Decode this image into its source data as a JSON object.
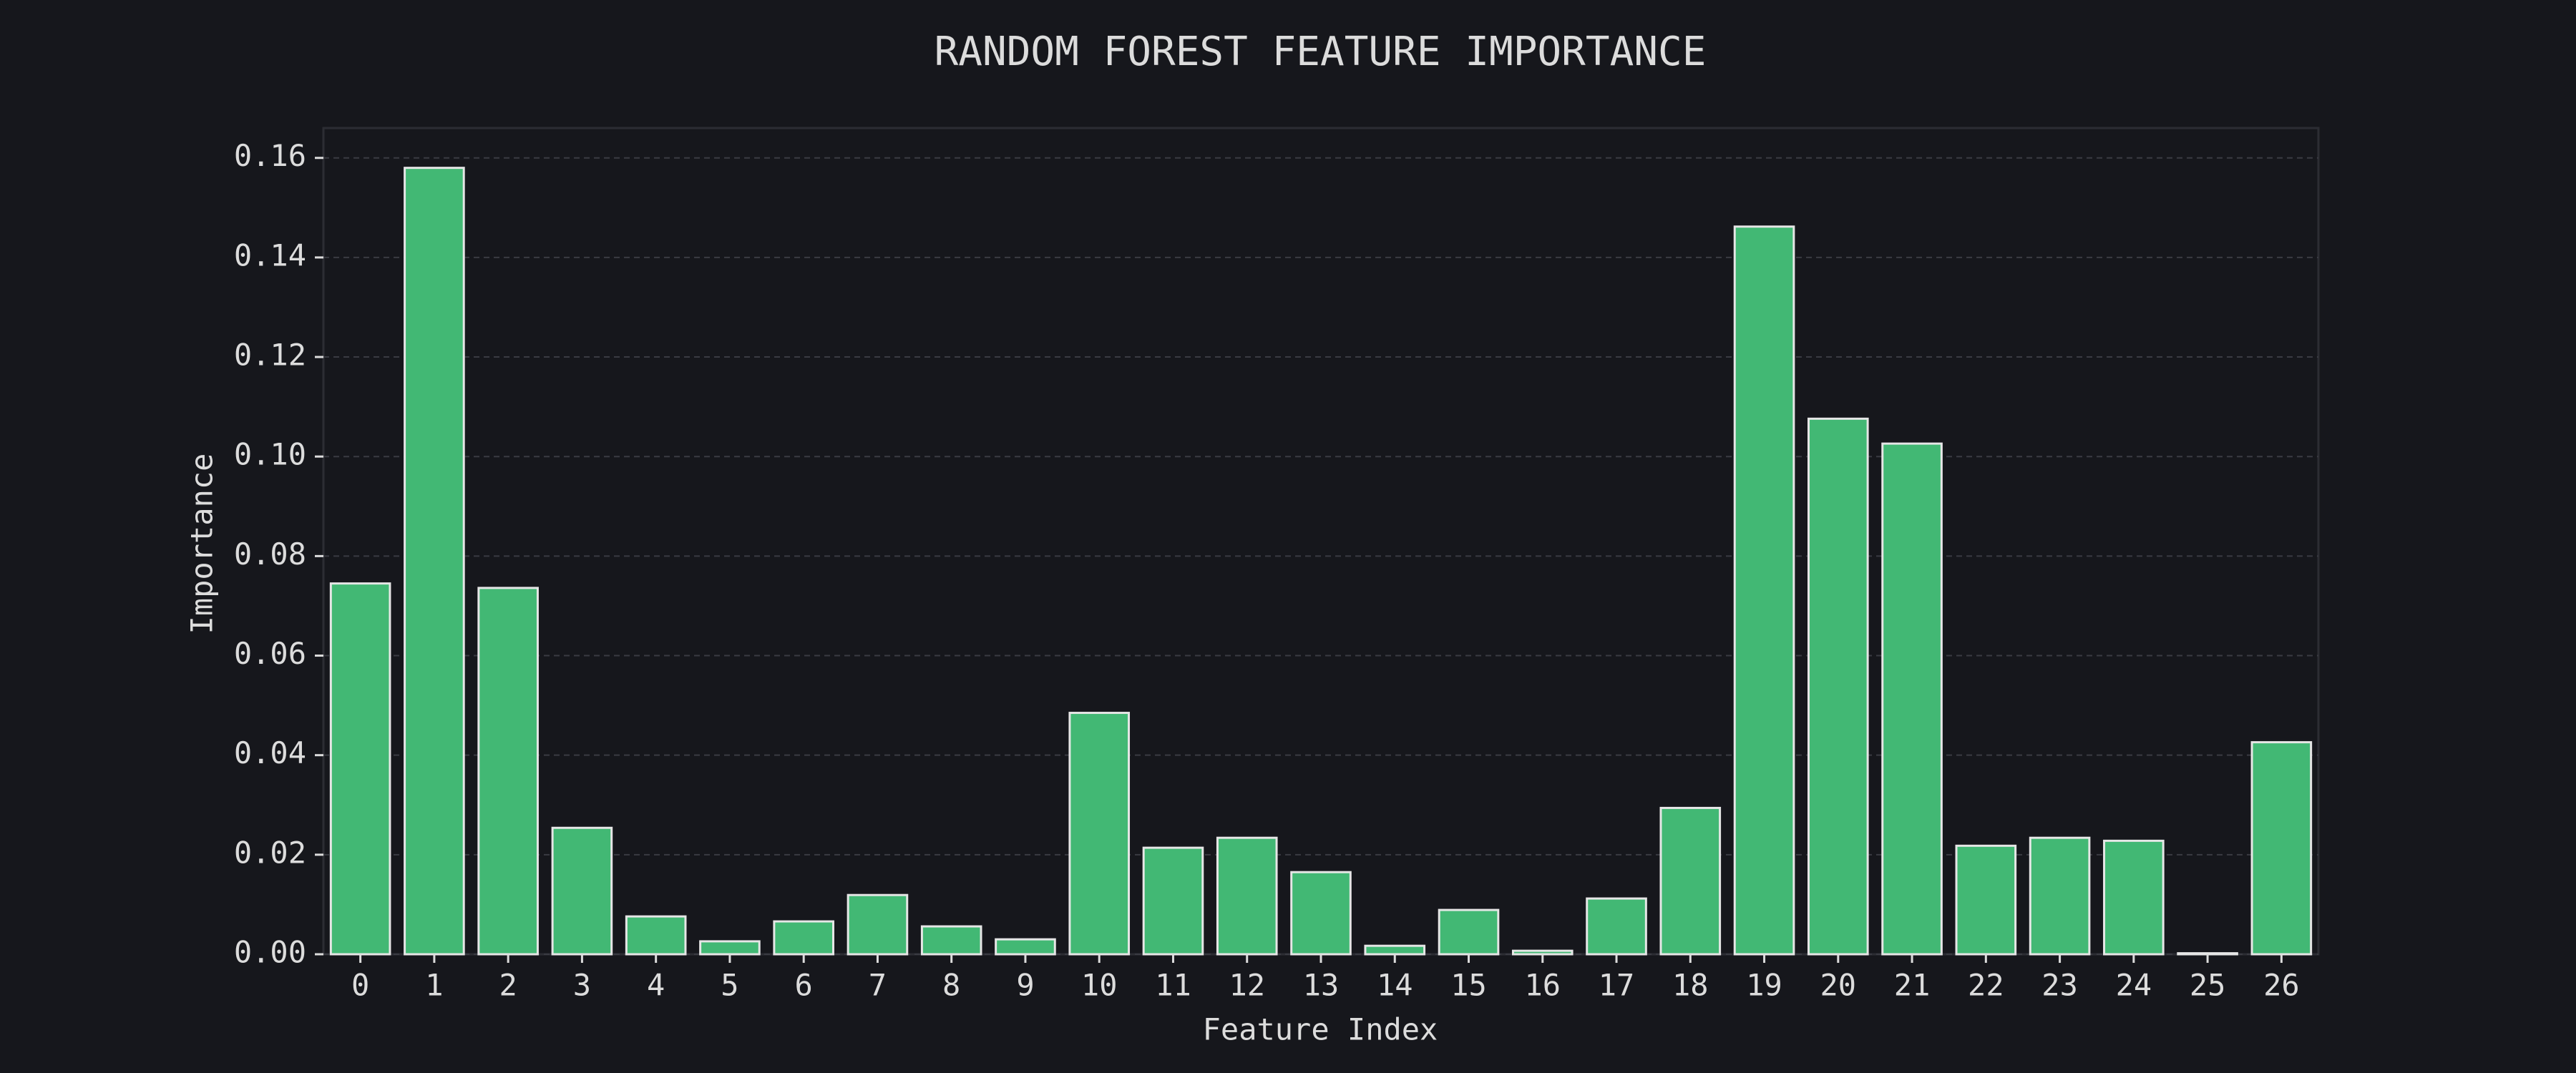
{
  "chart_data": {
    "type": "bar",
    "title": "RANDOM FOREST FEATURE IMPORTANCE",
    "x_label": "Feature Index",
    "y_label": "Importance",
    "categories": [
      "0",
      "1",
      "2",
      "3",
      "4",
      "5",
      "6",
      "7",
      "8",
      "9",
      "10",
      "11",
      "12",
      "13",
      "14",
      "15",
      "16",
      "17",
      "18",
      "19",
      "20",
      "21",
      "22",
      "23",
      "24",
      "25",
      "26"
    ],
    "values": [
      0.0745,
      0.158,
      0.0736,
      0.0254,
      0.0076,
      0.0026,
      0.0066,
      0.0119,
      0.0056,
      0.003,
      0.0485,
      0.0214,
      0.0234,
      0.0165,
      0.0017,
      0.0089,
      0.0007,
      0.0112,
      0.0294,
      0.1462,
      0.1076,
      0.1026,
      0.0218,
      0.0234,
      0.0228,
      0.0002,
      0.0426
    ],
    "color": "#42b874",
    "ylim": [
      0,
      0.166
    ],
    "yticks": [
      {
        "value": 0,
        "label": "0.00"
      },
      {
        "value": 0.02,
        "label": "0.02"
      },
      {
        "value": 0.04,
        "label": "0.04"
      },
      {
        "value": 0.06,
        "label": "0.06"
      },
      {
        "value": 0.08,
        "label": "0.08"
      },
      {
        "value": 0.1,
        "label": "0.10"
      },
      {
        "value": 0.12,
        "label": "0.12"
      },
      {
        "value": 0.14,
        "label": "0.14"
      },
      {
        "value": 0.16,
        "label": "0.16"
      }
    ],
    "grid": true
  }
}
